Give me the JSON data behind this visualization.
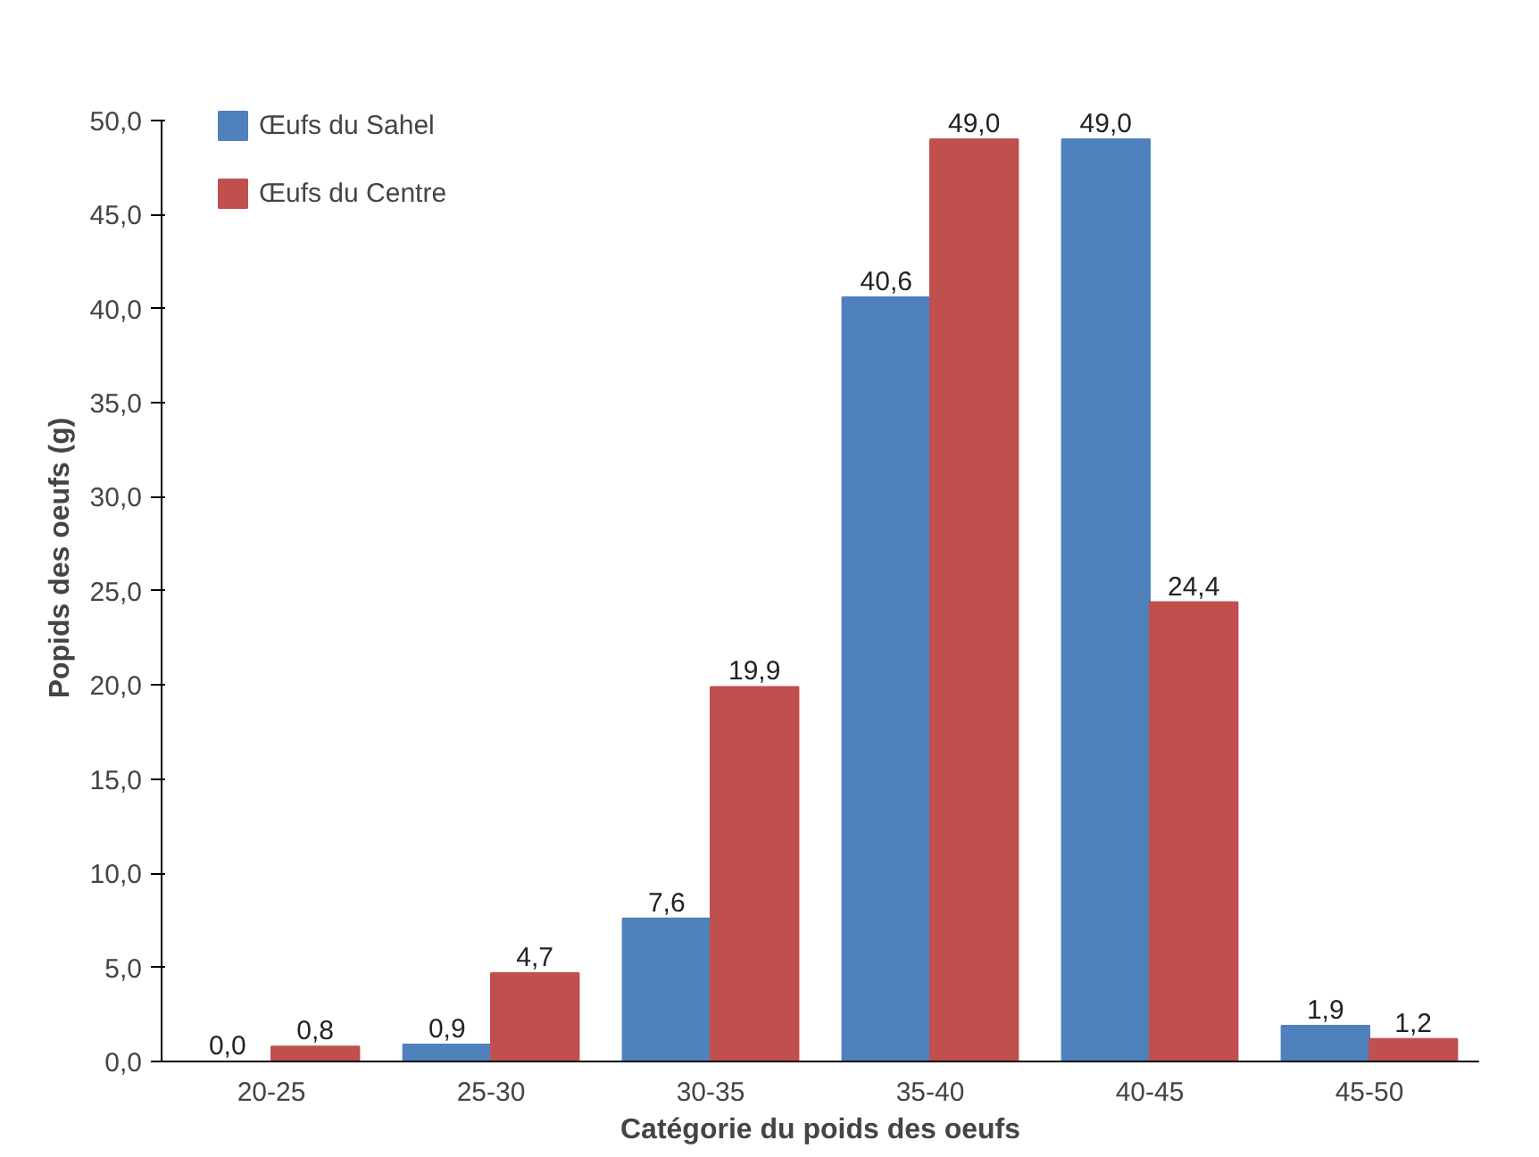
{
  "chart_data": {
    "type": "bar",
    "xlabel": "Catégorie du poids des oeufs",
    "ylabel": "Popids des oeufs (g)",
    "categories": [
      "20-25",
      "25-30",
      "30-35",
      "35-40",
      "40-45",
      "45-50"
    ],
    "series": [
      {
        "name": "Œufs du Sahel",
        "color": "#4f81bd",
        "values": [
          0.0,
          0.9,
          7.6,
          40.6,
          49.0,
          1.9
        ],
        "value_labels": [
          "0,0",
          "0,9",
          "7,6",
          "40,6",
          "49,0",
          "1,9"
        ]
      },
      {
        "name": "Œufs du Centre",
        "color": "#c0504d",
        "values": [
          0.8,
          4.7,
          19.9,
          49.0,
          24.4,
          1.2
        ],
        "value_labels": [
          "0,8",
          "4,7",
          "19,9",
          "49,0",
          "24,4",
          "1,2"
        ]
      }
    ],
    "ylim": [
      0,
      50
    ],
    "yticks": [
      {
        "value": 0,
        "label": "0,0"
      },
      {
        "value": 5,
        "label": "5,0"
      },
      {
        "value": 10,
        "label": "10,0"
      },
      {
        "value": 15,
        "label": "15,0"
      },
      {
        "value": 20,
        "label": "20,0"
      },
      {
        "value": 25,
        "label": "25,0"
      },
      {
        "value": 30,
        "label": "30,0"
      },
      {
        "value": 35,
        "label": "35,0"
      },
      {
        "value": 40,
        "label": "40,0"
      },
      {
        "value": 45,
        "label": "45,0"
      },
      {
        "value": 50,
        "label": "50,0"
      }
    ],
    "grid": false,
    "legend": "top left"
  }
}
